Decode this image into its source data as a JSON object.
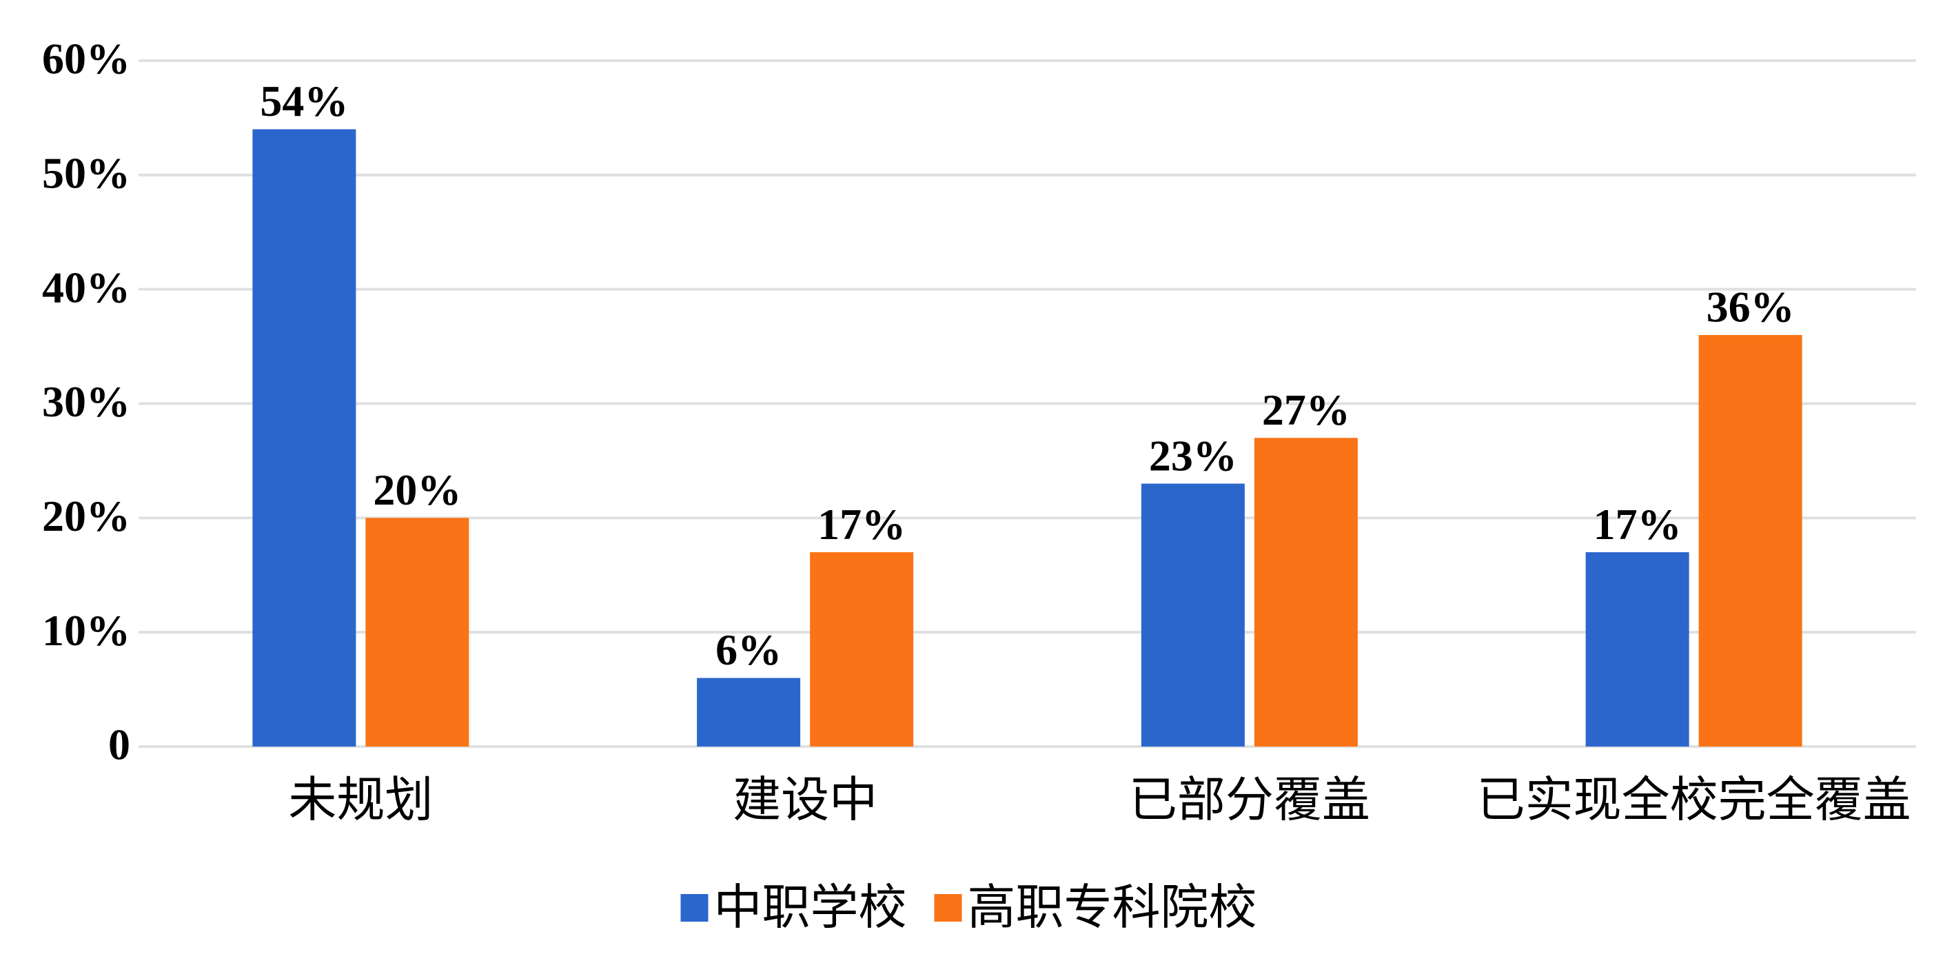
{
  "chart_data": {
    "type": "bar",
    "categories": [
      "未规划",
      "建设中",
      "已部分覆盖",
      "已实现全校完全覆盖"
    ],
    "series": [
      {
        "name": "中职学校",
        "color": "#2b66cc",
        "values": [
          54,
          6,
          23,
          17
        ],
        "value_labels": [
          "54%",
          "6%",
          "23%",
          "17%"
        ]
      },
      {
        "name": "高职专科院校",
        "color": "#fa7316",
        "values": [
          20,
          17,
          27,
          36
        ],
        "value_labels": [
          "20%",
          "17%",
          "27%",
          "36%"
        ]
      }
    ],
    "ylim": [
      0,
      60
    ],
    "yticks": [
      0,
      {
        "value": 10,
        "label": "10%"
      },
      {
        "value": 20,
        "label": "20%"
      },
      {
        "value": 30,
        "label": "30%"
      },
      {
        "value": 40,
        "label": "40%"
      },
      {
        "value": 50,
        "label": "50%"
      },
      {
        "value": 60,
        "label": "60%"
      }
    ],
    "grid": true,
    "legend": "bottom"
  }
}
